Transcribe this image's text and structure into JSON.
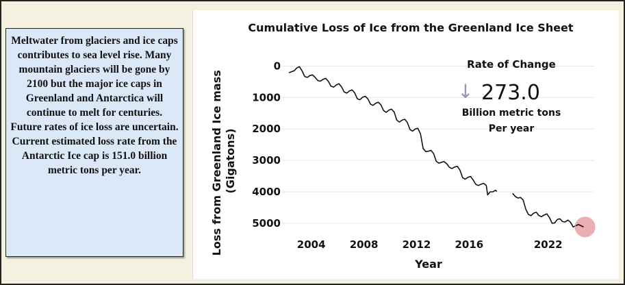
{
  "info_box": {
    "text": "Meltwater from glaciers and ice caps contributes to sea level rise.  Many mountain glaciers will be gone by 2100 but the major ice caps in Greenland and Antarctica will continue to melt for centuries.  Future rates of ice loss are uncertain.  Current estimated loss rate from the Antarctic Ice cap is 151.0 billion metric tons per year."
  },
  "rate_box": {
    "title": "Rate of Change",
    "arrow": "↓",
    "value": "273.0",
    "unit_line1": "Billion metric tons",
    "unit_line2": "Per year"
  },
  "colors": {
    "line": "#111111",
    "marker": "#e8a0a3",
    "frame_bg": "#f4f1e1",
    "text_box_bg": "#dbe8f7"
  },
  "chart_data": {
    "type": "line",
    "title": "Cumulative Loss of Ice from the Greenland Ice Sheet",
    "xlabel": "Year",
    "ylabel": "Loss from Greenland Ice mass (Gigatons)",
    "x_ticks": [
      2004,
      2008,
      2012,
      2016,
      2022
    ],
    "y_ticks": [
      0,
      1000,
      2000,
      3000,
      4000,
      5000
    ],
    "xlim": [
      2002.3,
      2025.5
    ],
    "ylim": [
      5200,
      -250
    ],
    "y_inverted": true,
    "grid": "horizontal",
    "highlight_last_point": true,
    "series": [
      {
        "segments": [
          [
            [
              2002.3,
              210
            ],
            [
              2002.5,
              180
            ],
            [
              2002.7,
              150
            ],
            [
              2002.9,
              60
            ],
            [
              2003.1,
              20
            ],
            [
              2003.3,
              150
            ],
            [
              2003.5,
              330
            ],
            [
              2003.7,
              360
            ],
            [
              2003.9,
              300
            ],
            [
              2004.1,
              280
            ],
            [
              2004.3,
              360
            ],
            [
              2004.5,
              460
            ],
            [
              2004.7,
              480
            ],
            [
              2004.9,
              420
            ],
            [
              2005.1,
              390
            ],
            [
              2005.3,
              490
            ],
            [
              2005.5,
              640
            ],
            [
              2005.7,
              670
            ],
            [
              2005.9,
              600
            ],
            [
              2006.1,
              560
            ],
            [
              2006.3,
              660
            ],
            [
              2006.5,
              820
            ],
            [
              2006.7,
              860
            ],
            [
              2006.9,
              790
            ],
            [
              2007.1,
              760
            ],
            [
              2007.3,
              850
            ],
            [
              2007.5,
              1040
            ],
            [
              2007.7,
              1070
            ],
            [
              2007.9,
              990
            ],
            [
              2008.1,
              960
            ],
            [
              2008.3,
              1040
            ],
            [
              2008.5,
              1210
            ],
            [
              2008.7,
              1250
            ],
            [
              2008.9,
              1180
            ],
            [
              2009.1,
              1150
            ],
            [
              2009.3,
              1240
            ],
            [
              2009.5,
              1420
            ],
            [
              2009.7,
              1470
            ],
            [
              2009.9,
              1400
            ],
            [
              2010.1,
              1370
            ],
            [
              2010.3,
              1460
            ],
            [
              2010.5,
              1720
            ],
            [
              2010.7,
              1780
            ],
            [
              2010.9,
              1720
            ],
            [
              2011.1,
              1690
            ],
            [
              2011.3,
              1790
            ],
            [
              2011.5,
              2020
            ],
            [
              2011.7,
              2070
            ],
            [
              2011.9,
              2000
            ],
            [
              2012.1,
              1980
            ],
            [
              2012.3,
              2150
            ],
            [
              2012.5,
              2620
            ],
            [
              2012.7,
              2720
            ],
            [
              2012.9,
              2710
            ],
            [
              2013.1,
              2680
            ],
            [
              2013.3,
              2790
            ],
            [
              2013.5,
              3030
            ],
            [
              2013.7,
              3090
            ],
            [
              2013.9,
              3060
            ],
            [
              2014.1,
              3040
            ],
            [
              2014.3,
              3110
            ],
            [
              2014.5,
              3220
            ],
            [
              2014.7,
              3260
            ],
            [
              2014.9,
              3210
            ],
            [
              2015.1,
              3190
            ],
            [
              2015.3,
              3310
            ],
            [
              2015.5,
              3550
            ],
            [
              2015.7,
              3600
            ],
            [
              2015.9,
              3540
            ],
            [
              2016.1,
              3510
            ],
            [
              2016.3,
              3620
            ],
            [
              2016.5,
              3760
            ],
            [
              2016.7,
              3800
            ],
            [
              2016.9,
              3760
            ],
            [
              2017.1,
              3730
            ],
            [
              2017.3,
              3800
            ],
            [
              2017.4,
              4100
            ],
            [
              2017.6,
              4000
            ],
            [
              2017.8,
              4000
            ],
            [
              2018.0,
              3950
            ],
            [
              2018.1,
              3990
            ]
          ],
          [
            [
              2019.3,
              4050
            ],
            [
              2019.5,
              4150
            ],
            [
              2019.7,
              4200
            ],
            [
              2019.9,
              4180
            ],
            [
              2020.1,
              4260
            ],
            [
              2020.3,
              4550
            ],
            [
              2020.5,
              4720
            ],
            [
              2020.7,
              4760
            ],
            [
              2020.9,
              4680
            ],
            [
              2021.1,
              4650
            ],
            [
              2021.3,
              4760
            ],
            [
              2021.5,
              4790
            ],
            [
              2021.7,
              4740
            ],
            [
              2021.9,
              4700
            ],
            [
              2022.1,
              4820
            ],
            [
              2022.3,
              5000
            ],
            [
              2022.5,
              4990
            ],
            [
              2022.7,
              4880
            ],
            [
              2022.9,
              4860
            ],
            [
              2023.1,
              4950
            ],
            [
              2023.3,
              4960
            ],
            [
              2023.5,
              4900
            ],
            [
              2023.7,
              4970
            ],
            [
              2023.9,
              5120
            ],
            [
              2024.1,
              5080
            ],
            [
              2024.3,
              5040
            ],
            [
              2024.5,
              5080
            ],
            [
              2024.7,
              5120
            ]
          ]
        ]
      }
    ]
  }
}
